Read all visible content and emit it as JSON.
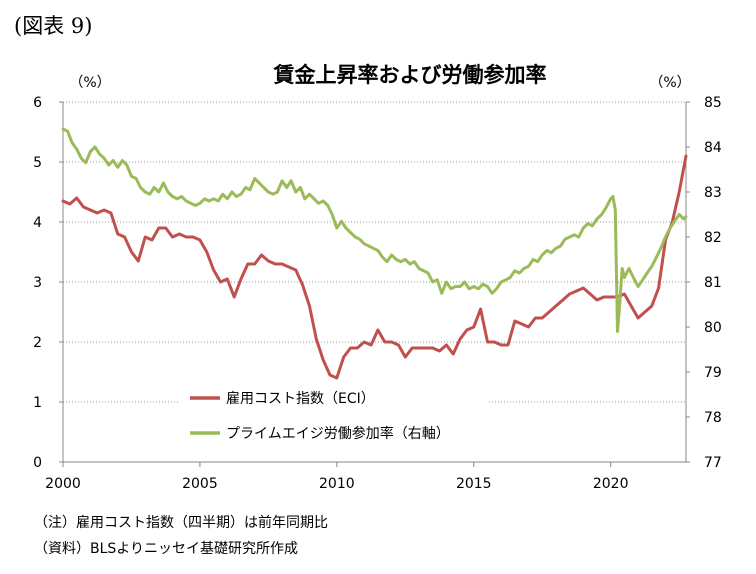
{
  "figure_label": "(図表 9)",
  "chart_data": {
    "type": "line",
    "title": "賃金上昇率および労働参加率",
    "left_unit": "（%）",
    "right_unit": "（%）",
    "xlim": [
      2000,
      2022.75
    ],
    "x_ticks": [
      2000,
      2005,
      2010,
      2015,
      2020
    ],
    "ylim_left": [
      0,
      6
    ],
    "ylim_right": [
      77,
      85
    ],
    "y_ticks_left": [
      0,
      1,
      2,
      3,
      4,
      5,
      6
    ],
    "y_ticks_right": [
      77,
      78,
      79,
      80,
      81,
      82,
      83,
      84,
      85
    ],
    "grid": "horizontal dotted",
    "legend_position": "center",
    "series": [
      {
        "name": "雇用コスト指数（ECI）",
        "axis": "left",
        "color": "#c0504d",
        "points": [
          [
            2000,
            4.35
          ],
          [
            2000.25,
            4.3
          ],
          [
            2000.5,
            4.4
          ],
          [
            2000.75,
            4.25
          ],
          [
            2001,
            4.2
          ],
          [
            2001.25,
            4.15
          ],
          [
            2001.5,
            4.2
          ],
          [
            2001.75,
            4.15
          ],
          [
            2002,
            3.8
          ],
          [
            2002.25,
            3.75
          ],
          [
            2002.5,
            3.5
          ],
          [
            2002.75,
            3.35
          ],
          [
            2003,
            3.75
          ],
          [
            2003.25,
            3.7
          ],
          [
            2003.5,
            3.9
          ],
          [
            2003.75,
            3.9
          ],
          [
            2004,
            3.75
          ],
          [
            2004.25,
            3.8
          ],
          [
            2004.5,
            3.75
          ],
          [
            2004.75,
            3.75
          ],
          [
            2005,
            3.7
          ],
          [
            2005.25,
            3.5
          ],
          [
            2005.5,
            3.2
          ],
          [
            2005.75,
            3.0
          ],
          [
            2006,
            3.05
          ],
          [
            2006.25,
            2.75
          ],
          [
            2006.5,
            3.05
          ],
          [
            2006.75,
            3.3
          ],
          [
            2007,
            3.3
          ],
          [
            2007.25,
            3.45
          ],
          [
            2007.5,
            3.35
          ],
          [
            2007.75,
            3.3
          ],
          [
            2008,
            3.3
          ],
          [
            2008.25,
            3.25
          ],
          [
            2008.5,
            3.2
          ],
          [
            2008.75,
            2.95
          ],
          [
            2009,
            2.6
          ],
          [
            2009.25,
            2.05
          ],
          [
            2009.5,
            1.7
          ],
          [
            2009.75,
            1.45
          ],
          [
            2010,
            1.4
          ],
          [
            2010.25,
            1.75
          ],
          [
            2010.5,
            1.9
          ],
          [
            2010.75,
            1.9
          ],
          [
            2011,
            2.0
          ],
          [
            2011.25,
            1.95
          ],
          [
            2011.5,
            2.2
          ],
          [
            2011.75,
            2.0
          ],
          [
            2012,
            2.0
          ],
          [
            2012.25,
            1.95
          ],
          [
            2012.5,
            1.75
          ],
          [
            2012.75,
            1.9
          ],
          [
            2013,
            1.9
          ],
          [
            2013.25,
            1.9
          ],
          [
            2013.5,
            1.9
          ],
          [
            2013.75,
            1.85
          ],
          [
            2014,
            1.95
          ],
          [
            2014.25,
            1.8
          ],
          [
            2014.5,
            2.05
          ],
          [
            2014.75,
            2.2
          ],
          [
            2015,
            2.25
          ],
          [
            2015.25,
            2.55
          ],
          [
            2015.5,
            2.0
          ],
          [
            2015.75,
            2.0
          ],
          [
            2016,
            1.95
          ],
          [
            2016.25,
            1.95
          ],
          [
            2016.5,
            2.35
          ],
          [
            2016.75,
            2.3
          ],
          [
            2017,
            2.25
          ],
          [
            2017.25,
            2.4
          ],
          [
            2017.5,
            2.4
          ],
          [
            2017.75,
            2.5
          ],
          [
            2018,
            2.6
          ],
          [
            2018.25,
            2.7
          ],
          [
            2018.5,
            2.8
          ],
          [
            2018.75,
            2.85
          ],
          [
            2019,
            2.9
          ],
          [
            2019.25,
            2.8
          ],
          [
            2019.5,
            2.7
          ],
          [
            2019.75,
            2.75
          ],
          [
            2020,
            2.75
          ],
          [
            2020.25,
            2.75
          ],
          [
            2020.5,
            2.8
          ],
          [
            2020.75,
            2.6
          ],
          [
            2021,
            2.4
          ],
          [
            2021.25,
            2.5
          ],
          [
            2021.5,
            2.6
          ],
          [
            2021.75,
            2.9
          ],
          [
            2022,
            3.7
          ],
          [
            2022.25,
            4.0
          ],
          [
            2022.5,
            4.5
          ],
          [
            2022.75,
            5.1
          ]
        ]
      },
      {
        "name": "プライムエイジ労働参加率（右軸）",
        "axis": "right",
        "color": "#9bbb59",
        "points": [
          [
            2000,
            84.4
          ],
          [
            2000.17,
            84.35
          ],
          [
            2000.33,
            84.1
          ],
          [
            2000.5,
            83.95
          ],
          [
            2000.67,
            83.75
          ],
          [
            2000.83,
            83.65
          ],
          [
            2001,
            83.9
          ],
          [
            2001.17,
            84.0
          ],
          [
            2001.33,
            83.85
          ],
          [
            2001.5,
            83.75
          ],
          [
            2001.67,
            83.6
          ],
          [
            2001.83,
            83.7
          ],
          [
            2002,
            83.55
          ],
          [
            2002.17,
            83.7
          ],
          [
            2002.33,
            83.6
          ],
          [
            2002.5,
            83.35
          ],
          [
            2002.67,
            83.3
          ],
          [
            2002.83,
            83.1
          ],
          [
            2003,
            83.0
          ],
          [
            2003.17,
            82.95
          ],
          [
            2003.33,
            83.1
          ],
          [
            2003.5,
            83.0
          ],
          [
            2003.67,
            83.2
          ],
          [
            2003.83,
            83.0
          ],
          [
            2004,
            82.9
          ],
          [
            2004.17,
            82.85
          ],
          [
            2004.33,
            82.9
          ],
          [
            2004.5,
            82.8
          ],
          [
            2004.67,
            82.75
          ],
          [
            2004.83,
            82.7
          ],
          [
            2005,
            82.75
          ],
          [
            2005.17,
            82.85
          ],
          [
            2005.33,
            82.8
          ],
          [
            2005.5,
            82.85
          ],
          [
            2005.67,
            82.8
          ],
          [
            2005.83,
            82.95
          ],
          [
            2006,
            82.85
          ],
          [
            2006.17,
            83.0
          ],
          [
            2006.33,
            82.9
          ],
          [
            2006.5,
            82.95
          ],
          [
            2006.67,
            83.1
          ],
          [
            2006.83,
            83.05
          ],
          [
            2007,
            83.3
          ],
          [
            2007.17,
            83.2
          ],
          [
            2007.33,
            83.1
          ],
          [
            2007.5,
            83.0
          ],
          [
            2007.67,
            82.95
          ],
          [
            2007.83,
            83.0
          ],
          [
            2008,
            83.25
          ],
          [
            2008.17,
            83.1
          ],
          [
            2008.33,
            83.25
          ],
          [
            2008.5,
            83.0
          ],
          [
            2008.67,
            83.1
          ],
          [
            2008.83,
            82.85
          ],
          [
            2009,
            82.95
          ],
          [
            2009.17,
            82.85
          ],
          [
            2009.33,
            82.75
          ],
          [
            2009.5,
            82.8
          ],
          [
            2009.67,
            82.7
          ],
          [
            2009.83,
            82.5
          ],
          [
            2010,
            82.2
          ],
          [
            2010.17,
            82.35
          ],
          [
            2010.33,
            82.2
          ],
          [
            2010.5,
            82.1
          ],
          [
            2010.67,
            82.0
          ],
          [
            2010.83,
            81.95
          ],
          [
            2011,
            81.85
          ],
          [
            2011.17,
            81.8
          ],
          [
            2011.33,
            81.75
          ],
          [
            2011.5,
            81.7
          ],
          [
            2011.67,
            81.55
          ],
          [
            2011.83,
            81.45
          ],
          [
            2012,
            81.6
          ],
          [
            2012.17,
            81.5
          ],
          [
            2012.33,
            81.45
          ],
          [
            2012.5,
            81.5
          ],
          [
            2012.67,
            81.4
          ],
          [
            2012.83,
            81.45
          ],
          [
            2013,
            81.3
          ],
          [
            2013.17,
            81.25
          ],
          [
            2013.33,
            81.2
          ],
          [
            2013.5,
            81.0
          ],
          [
            2013.67,
            81.05
          ],
          [
            2013.83,
            80.75
          ],
          [
            2014,
            81.0
          ],
          [
            2014.17,
            80.85
          ],
          [
            2014.33,
            80.9
          ],
          [
            2014.5,
            80.9
          ],
          [
            2014.67,
            81.0
          ],
          [
            2014.83,
            80.85
          ],
          [
            2015,
            80.9
          ],
          [
            2015.17,
            80.85
          ],
          [
            2015.33,
            80.95
          ],
          [
            2015.5,
            80.9
          ],
          [
            2015.67,
            80.75
          ],
          [
            2015.83,
            80.85
          ],
          [
            2016,
            81.0
          ],
          [
            2016.17,
            81.05
          ],
          [
            2016.33,
            81.1
          ],
          [
            2016.5,
            81.25
          ],
          [
            2016.67,
            81.2
          ],
          [
            2016.83,
            81.3
          ],
          [
            2017,
            81.35
          ],
          [
            2017.17,
            81.5
          ],
          [
            2017.33,
            81.45
          ],
          [
            2017.5,
            81.6
          ],
          [
            2017.67,
            81.7
          ],
          [
            2017.83,
            81.65
          ],
          [
            2018,
            81.75
          ],
          [
            2018.17,
            81.8
          ],
          [
            2018.33,
            81.95
          ],
          [
            2018.5,
            82.0
          ],
          [
            2018.67,
            82.05
          ],
          [
            2018.83,
            82.0
          ],
          [
            2019,
            82.2
          ],
          [
            2019.17,
            82.3
          ],
          [
            2019.33,
            82.25
          ],
          [
            2019.5,
            82.4
          ],
          [
            2019.67,
            82.5
          ],
          [
            2019.83,
            82.65
          ],
          [
            2020,
            82.85
          ],
          [
            2020.08,
            82.9
          ],
          [
            2020.17,
            82.6
          ],
          [
            2020.25,
            79.9
          ],
          [
            2020.33,
            80.5
          ],
          [
            2020.42,
            81.3
          ],
          [
            2020.5,
            81.1
          ],
          [
            2020.67,
            81.3
          ],
          [
            2020.83,
            81.1
          ],
          [
            2021,
            80.9
          ],
          [
            2021.17,
            81.05
          ],
          [
            2021.33,
            81.2
          ],
          [
            2021.5,
            81.35
          ],
          [
            2021.67,
            81.55
          ],
          [
            2021.83,
            81.75
          ],
          [
            2022,
            82.0
          ],
          [
            2022.17,
            82.2
          ],
          [
            2022.33,
            82.35
          ],
          [
            2022.5,
            82.5
          ],
          [
            2022.67,
            82.4
          ],
          [
            2022.75,
            82.45
          ]
        ]
      }
    ]
  },
  "notes": [
    "（注）雇用コスト指数（四半期）は前年同期比",
    "（資料）BLSよりニッセイ基礎研究所作成"
  ]
}
